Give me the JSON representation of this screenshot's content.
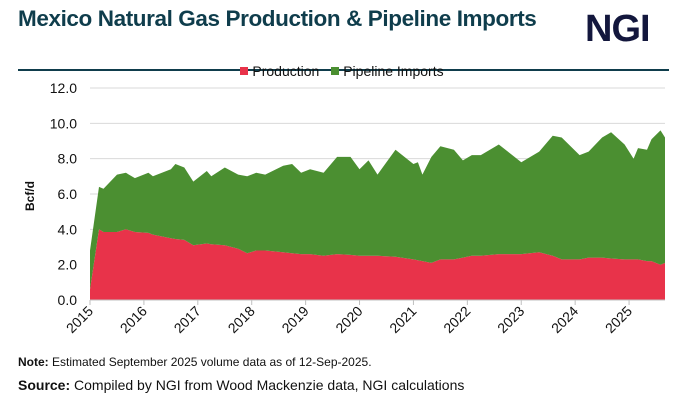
{
  "header": {
    "title": "Mexico Natural Gas Production & Pipeline Imports",
    "logo": "NGI"
  },
  "footer": {
    "note_label": "Note:",
    "note_text": " Estimated September 2025 volume data as of 12-Sep-2025.",
    "source_label": "Source:",
    "source_text": " Compiled by NGI from Wood Mackenzie data, NGI calculations"
  },
  "chart_data": {
    "type": "area",
    "stacked": true,
    "ylabel": "Bcf/d",
    "xlabel": "",
    "ylim": [
      0,
      12
    ],
    "yticks": [
      "0.0",
      "2.0",
      "4.0",
      "6.0",
      "8.0",
      "10.0",
      "12.0"
    ],
    "xticks": [
      "2015",
      "2016",
      "2017",
      "2018",
      "2019",
      "2020",
      "2021",
      "2022",
      "2023",
      "2024",
      "2025"
    ],
    "xlim": [
      "2015-01",
      "2025-09"
    ],
    "grid": true,
    "legend_position": "top",
    "colors": {
      "Production": "#e8334a",
      "Pipeline Imports": "#4b8f31"
    },
    "x": [
      "2015-01",
      "2015-03",
      "2015-04",
      "2015-07",
      "2015-09",
      "2015-11",
      "2016-02",
      "2016-03",
      "2016-07",
      "2016-08",
      "2016-10",
      "2016-12",
      "2017-03",
      "2017-04",
      "2017-07",
      "2017-10",
      "2017-12",
      "2018-02",
      "2018-04",
      "2018-08",
      "2018-10",
      "2018-12",
      "2019-02",
      "2019-05",
      "2019-08",
      "2019-11",
      "2020-01",
      "2020-03",
      "2020-05",
      "2020-09",
      "2021-01",
      "2021-02",
      "2021-03",
      "2021-05",
      "2021-07",
      "2021-10",
      "2021-12",
      "2022-02",
      "2022-04",
      "2022-08",
      "2022-11",
      "2023-01",
      "2023-05",
      "2023-08",
      "2023-10",
      "2024-02",
      "2024-04",
      "2024-07",
      "2024-09",
      "2024-12",
      "2025-02",
      "2025-03",
      "2025-05",
      "2025-06",
      "2025-08",
      "2025-09"
    ],
    "series": [
      {
        "name": "Production",
        "values": [
          0.6,
          4.0,
          3.85,
          3.85,
          4.0,
          3.85,
          3.8,
          3.7,
          3.5,
          3.45,
          3.4,
          3.1,
          3.2,
          3.15,
          3.1,
          2.9,
          2.65,
          2.8,
          2.8,
          2.7,
          2.65,
          2.6,
          2.6,
          2.5,
          2.6,
          2.55,
          2.5,
          2.5,
          2.5,
          2.45,
          2.3,
          2.25,
          2.2,
          2.1,
          2.3,
          2.3,
          2.4,
          2.5,
          2.5,
          2.6,
          2.6,
          2.6,
          2.7,
          2.5,
          2.3,
          2.3,
          2.4,
          2.4,
          2.35,
          2.3,
          2.3,
          2.3,
          2.2,
          2.2,
          2.0,
          2.1
        ]
      },
      {
        "name": "Pipeline Imports",
        "values": [
          2.2,
          2.4,
          2.45,
          3.25,
          3.2,
          3.05,
          3.4,
          3.3,
          3.9,
          4.25,
          4.1,
          3.6,
          4.1,
          3.85,
          4.4,
          4.2,
          4.35,
          4.4,
          4.3,
          4.9,
          5.05,
          4.6,
          4.8,
          4.7,
          5.5,
          5.55,
          4.9,
          5.4,
          4.6,
          6.05,
          5.4,
          5.55,
          4.9,
          6.0,
          6.4,
          6.2,
          5.5,
          5.7,
          5.7,
          6.2,
          5.6,
          5.2,
          5.7,
          6.8,
          6.9,
          5.9,
          6.0,
          6.8,
          7.15,
          6.5,
          5.7,
          6.3,
          6.3,
          6.9,
          7.6,
          7.1
        ]
      }
    ]
  }
}
